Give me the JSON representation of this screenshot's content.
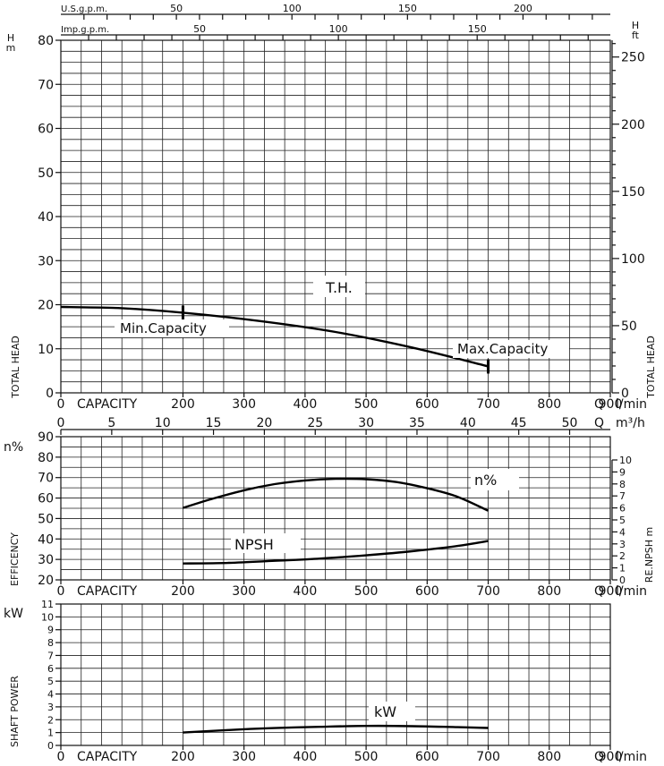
{
  "chart_data": [
    {
      "type": "line",
      "name": "head",
      "top_axes": [
        {
          "label": "U.S.g.p.m.",
          "ticks": [
            50,
            100,
            150,
            200
          ]
        },
        {
          "label": "Imp.g.p.m.",
          "ticks": [
            50,
            100,
            150
          ]
        }
      ],
      "xlabel": "CAPACITY",
      "x_unit": "l/min",
      "q_symbol": "Q",
      "x_ticks": [
        0,
        200,
        300,
        400,
        500,
        600,
        700,
        800,
        900
      ],
      "xlim": [
        0,
        900
      ],
      "ylabel": "TOTAL HEAD",
      "y_unit": "m",
      "y_symbol": "H",
      "ylim": [
        0,
        80
      ],
      "y_ticks": [
        0,
        10,
        20,
        30,
        40,
        50,
        60,
        70,
        80
      ],
      "right_label": "TOTAL HEAD",
      "right_unit": "ft",
      "right_symbol": "H",
      "right_ticks": [
        0,
        50,
        100,
        150,
        200,
        250
      ],
      "series": [
        {
          "name": "T.H.",
          "x": [
            0,
            100,
            200,
            325,
            450,
            575,
            700
          ],
          "y": [
            19.5,
            19.2,
            18.2,
            16.3,
            13.8,
            10.3,
            6.0
          ]
        }
      ],
      "annotations": [
        {
          "text": "Min.Capacity",
          "x": 200,
          "y": 18.2
        },
        {
          "text": "Max.Capacity",
          "x": 700,
          "y": 6.0
        }
      ]
    },
    {
      "type": "line",
      "name": "efficiency",
      "top_axis": {
        "unit": "m³/h",
        "q_symbol": "Q",
        "ticks": [
          0,
          5,
          10,
          15,
          20,
          25,
          30,
          35,
          40,
          45,
          50
        ]
      },
      "xlabel": "CAPACITY",
      "x_unit": "l/min",
      "q_symbol": "Q",
      "x_ticks": [
        0,
        200,
        300,
        400,
        500,
        600,
        700,
        800,
        900
      ],
      "xlim": [
        0,
        900
      ],
      "ylabel": "EFFICENCY",
      "y_symbol": "n%",
      "ylim": [
        20,
        90
      ],
      "y_ticks": [
        20,
        30,
        40,
        50,
        60,
        70,
        80,
        90
      ],
      "right_label": "RE.NPSH m",
      "right_ylim": [
        0,
        10
      ],
      "right_ticks": [
        0,
        1,
        2,
        3,
        4,
        5,
        6,
        7,
        8,
        9,
        10
      ],
      "series": [
        {
          "name": "n%",
          "x": [
            200,
            250,
            300,
            350,
            400,
            450,
            500,
            550,
            600,
            650,
            700
          ],
          "y": [
            55.2,
            59.8,
            63.8,
            66.8,
            68.6,
            69.4,
            69.2,
            67.8,
            64.8,
            60.6,
            53.8
          ]
        },
        {
          "name": "NPSH",
          "x": [
            200,
            275,
            350,
            425,
            500,
            575,
            650,
            700
          ],
          "y": [
            28,
            28.3,
            29.3,
            30.4,
            32.0,
            34.0,
            36.6,
            39.0
          ]
        }
      ]
    },
    {
      "type": "line",
      "name": "power",
      "xlabel": "CAPACITY",
      "x_unit": "l/min",
      "q_symbol": "Q",
      "x_ticks": [
        0,
        200,
        300,
        400,
        500,
        600,
        700,
        800,
        900
      ],
      "xlim": [
        0,
        900
      ],
      "ylabel": "SHAFT POWER",
      "y_unit": "kW",
      "ylim": [
        0,
        11
      ],
      "y_ticks": [
        0,
        1,
        2,
        3,
        4,
        5,
        6,
        7,
        8,
        9,
        10,
        11
      ],
      "series": [
        {
          "name": "kW",
          "x": [
            200,
            275,
            350,
            425,
            500,
            575,
            650,
            700
          ],
          "y": [
            1.0,
            1.2,
            1.35,
            1.45,
            1.52,
            1.5,
            1.42,
            1.36
          ]
        }
      ]
    }
  ]
}
